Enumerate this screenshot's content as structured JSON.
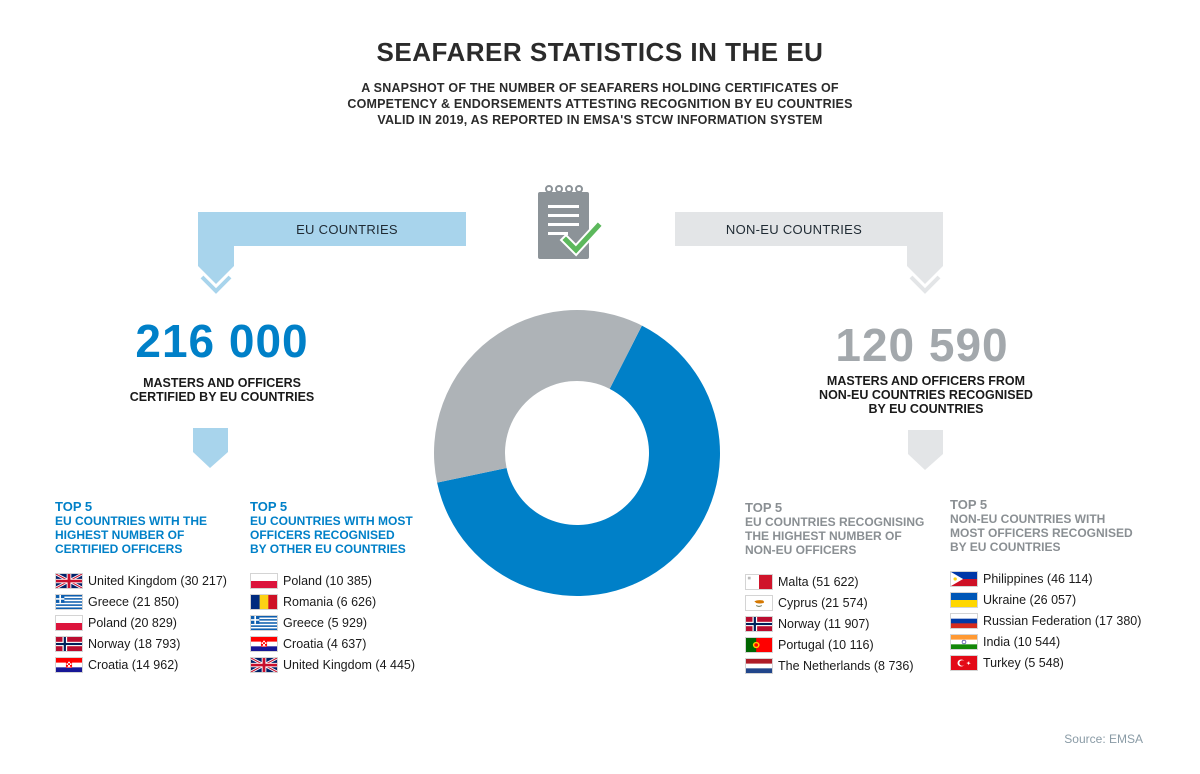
{
  "title": "SEAFARER STATISTICS IN THE EU",
  "subtitle": [
    "A SNAPSHOT OF THE NUMBER OF SEAFARERS HOLDING CERTIFICATES OF",
    "COMPETENCY & ENDORSEMENTS ATTESTING RECOGNITION BY EU COUNTRIES",
    "VALID IN 2019, AS REPORTED IN EMSA'S STCW INFORMATION SYSTEM"
  ],
  "eu": {
    "banner": "EU COUNTRIES",
    "total": "216 000",
    "description": [
      "MASTERS AND OFFICERS",
      "CERTIFIED BY EU COUNTRIES"
    ]
  },
  "non_eu": {
    "banner": "NON-EU COUNTRIES",
    "total": "120 590",
    "description": [
      "MASTERS AND OFFICERS FROM",
      "NON-EU COUNTRIES RECOGNISED",
      "BY EU COUNTRIES"
    ]
  },
  "lists": [
    {
      "top_label": "TOP 5",
      "heading": [
        "EU COUNTRIES WITH THE",
        "HIGHEST NUMBER OF",
        "CERTIFIED OFFICERS"
      ],
      "items": [
        {
          "label": "United Kingdom (30 217)",
          "flag": "uk"
        },
        {
          "label": "Greece (21 850)",
          "flag": "greece"
        },
        {
          "label": "Poland (20 829)",
          "flag": "poland"
        },
        {
          "label": "Norway (18 793)",
          "flag": "norway"
        },
        {
          "label": "Croatia (14 962)",
          "flag": "croatia"
        }
      ]
    },
    {
      "top_label": "TOP 5",
      "heading": [
        "EU COUNTRIES WITH MOST",
        "OFFICERS RECOGNISED",
        "BY OTHER EU COUNTRIES"
      ],
      "items": [
        {
          "label": "Poland (10 385)",
          "flag": "poland"
        },
        {
          "label": "Romania (6 626)",
          "flag": "romania"
        },
        {
          "label": "Greece (5 929)",
          "flag": "greece"
        },
        {
          "label": "Croatia (4 637)",
          "flag": "croatia"
        },
        {
          "label": "United Kingdom (4 445)",
          "flag": "uk"
        }
      ]
    },
    {
      "top_label": "TOP 5",
      "heading": [
        "EU COUNTRIES RECOGNISING",
        "THE HIGHEST NUMBER OF",
        "NON-EU OFFICERS"
      ],
      "items": [
        {
          "label": "Malta (51 622)",
          "flag": "malta"
        },
        {
          "label": "Cyprus (21 574)",
          "flag": "cyprus"
        },
        {
          "label": "Norway (11 907)",
          "flag": "norway"
        },
        {
          "label": "Portugal (10 116)",
          "flag": "portugal"
        },
        {
          "label": "The Netherlands (8 736)",
          "flag": "netherlands"
        }
      ]
    },
    {
      "top_label": "TOP 5",
      "heading": [
        "NON-EU COUNTRIES WITH",
        "MOST OFFICERS RECOGNISED",
        "BY EU COUNTRIES"
      ],
      "items": [
        {
          "label": "Philippines (46 114)",
          "flag": "philippines"
        },
        {
          "label": "Ukraine (26 057)",
          "flag": "ukraine"
        },
        {
          "label": "Russian Federation (17 380)",
          "flag": "russia"
        },
        {
          "label": "India (10 544)",
          "flag": "india"
        },
        {
          "label": "Turkey (5 548)",
          "flag": "turkey"
        }
      ]
    }
  ],
  "source": "Source: EMSA",
  "icon": "clipboard-check-icon",
  "colors": {
    "eu_blue": "#0080c8",
    "eu_light": "#a8d4ec",
    "non_eu_grey": "#aeb3b7",
    "non_eu_light": "#e3e5e7",
    "check_green": "#5cb85c"
  },
  "chart_data": {
    "type": "pie",
    "donut": true,
    "categories": [
      "EU COUNTRIES",
      "NON-EU COUNTRIES"
    ],
    "values": [
      216000,
      120590
    ],
    "colors": [
      "#0080c8",
      "#aeb3b7"
    ]
  }
}
